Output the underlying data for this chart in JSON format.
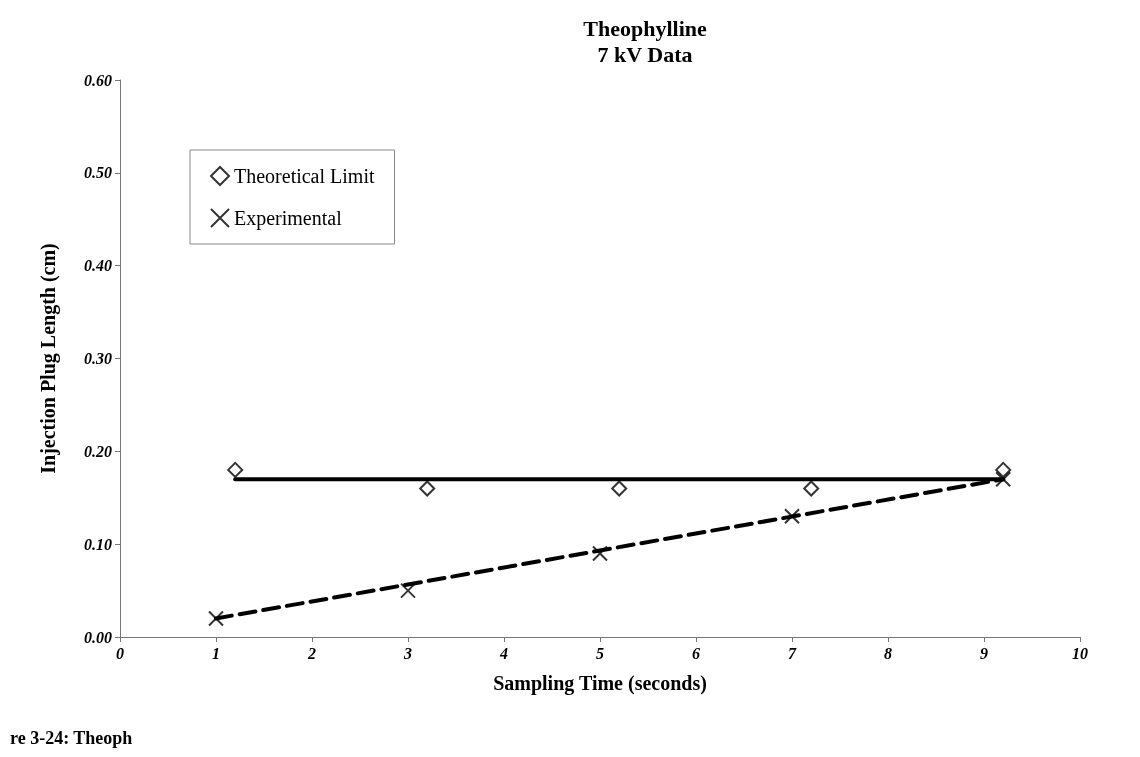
{
  "chart_data": {
    "type": "scatter",
    "title": "Theophylline",
    "subtitle": "7 kV Data",
    "xlabel": "Sampling Time (seconds)",
    "ylabel": "Injection Plug Length (cm)",
    "annotations": [
      "re 3-24: Theoph"
    ],
    "series": [
      {
        "name": "Theoretical Limit",
        "marker": "diamond",
        "color": "#000000",
        "x": [
          1.2,
          3.2,
          5.2,
          7.2,
          9.2
        ],
        "values": [
          0.18,
          0.16,
          0.16,
          0.16,
          0.18
        ]
      },
      {
        "name": "Experimental",
        "marker": "cross",
        "color": "#000000",
        "x": [
          1,
          3,
          5,
          7,
          9.2
        ],
        "values": [
          0.02,
          0.05,
          0.09,
          0.13,
          0.17
        ]
      },
      {
        "type": "line",
        "marker": "none",
        "line_style": "solid",
        "color": "#000000",
        "x": [
          1.2,
          9.2
        ],
        "values": [
          0.17,
          0.17
        ]
      },
      {
        "type": "line",
        "marker": "none",
        "line_style": "dashed",
        "color": "#000000",
        "x": [
          1,
          9.2
        ],
        "values": [
          0.02,
          0.17
        ]
      }
    ],
    "xlim": [
      0,
      10
    ],
    "xticks": [
      0,
      1,
      2,
      3,
      4,
      5,
      6,
      7,
      8,
      9,
      10
    ],
    "ylim": [
      0,
      0.6
    ],
    "yticks": [
      {
        "value": 0,
        "label": "0.00"
      },
      {
        "value": 0.1,
        "label": "0.10"
      },
      {
        "value": 0.2,
        "label": "0.20"
      },
      {
        "value": 0.3,
        "label": "0.30"
      },
      {
        "value": 0.4,
        "label": "0.40"
      },
      {
        "value": 0.5,
        "label": "0.50"
      },
      {
        "value": 0.6,
        "label": "0.60"
      }
    ],
    "grid": false,
    "legend": "top left"
  }
}
